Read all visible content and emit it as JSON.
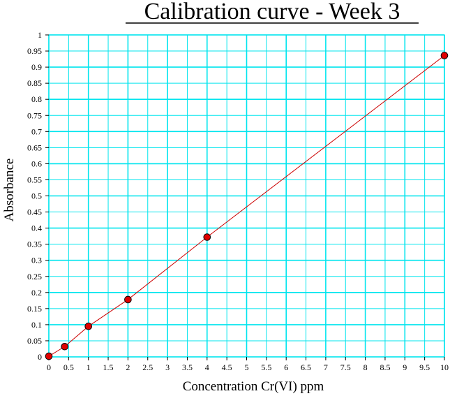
{
  "chart_data": {
    "type": "scatter",
    "title": "Calibration curve - Week 3",
    "xlabel": "Concentration Cr(VI) ppm",
    "ylabel": "Absorbance",
    "xlim": [
      0,
      10
    ],
    "ylim": [
      0,
      1
    ],
    "x_ticks": [
      "0",
      "0.5",
      "1",
      "1.5",
      "2",
      "2.5",
      "3",
      "3.5",
      "4",
      "4.5",
      "5",
      "5.5",
      "6",
      "6.5",
      "7",
      "7.5",
      "8",
      "8.5",
      "9",
      "9.5",
      "10"
    ],
    "y_ticks": [
      "0",
      "0.05",
      "0.1",
      "0.15",
      "0.2",
      "0.25",
      "0.3",
      "0.35",
      "0.4",
      "0.45",
      "0.5",
      "0.55",
      "0.6",
      "0.65",
      "0.7",
      "0.75",
      "0.8",
      "0.85",
      "0.9",
      "0.95",
      "1"
    ],
    "grid": true,
    "series": [
      {
        "x": [
          0,
          0.4,
          1,
          2,
          4,
          10
        ],
        "y": [
          0.002,
          0.032,
          0.095,
          0.178,
          0.372,
          0.936
        ],
        "color": "#e00000",
        "line_color": "#cc0000",
        "marker": "circle"
      }
    ],
    "grid_color": "#00e5ee"
  }
}
